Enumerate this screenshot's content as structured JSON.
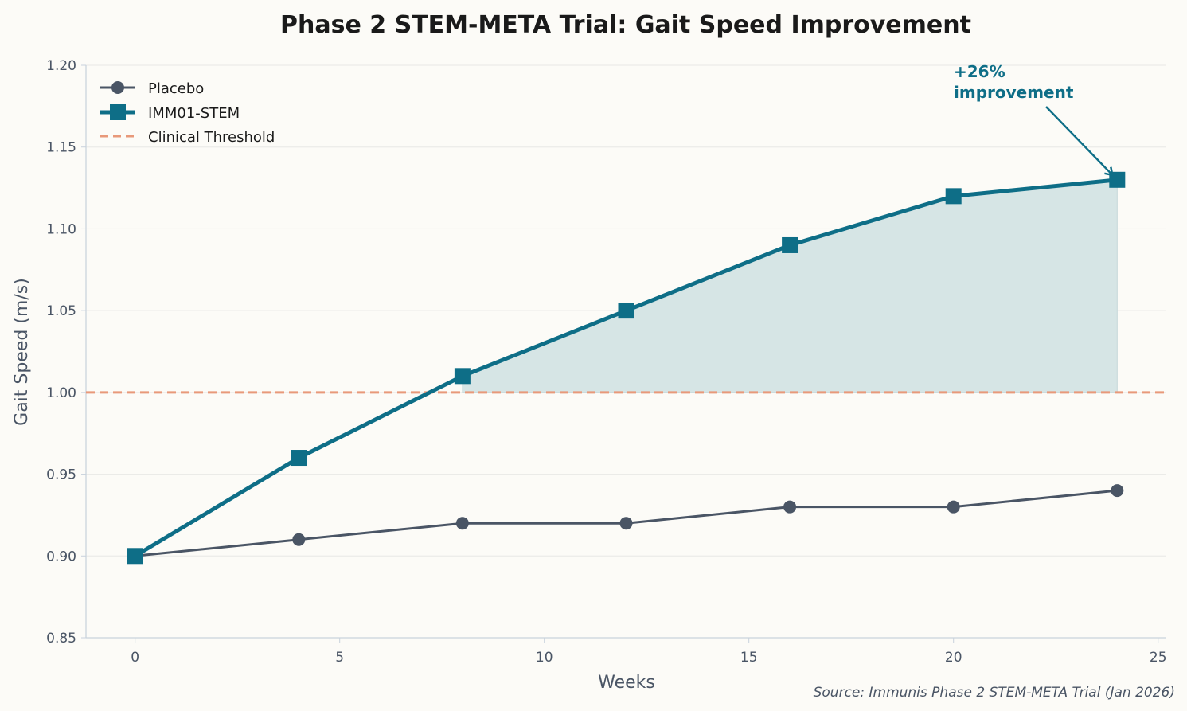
{
  "chart_data": {
    "type": "line",
    "title": "Phase 2 STEM-META Trial: Gait Speed Improvement",
    "xlabel": "Weeks",
    "ylabel": "Gait Speed (m/s)",
    "x": [
      0,
      4,
      8,
      12,
      16,
      20,
      24
    ],
    "xlim": [
      -1.2,
      25.2
    ],
    "ylim": [
      0.85,
      1.2
    ],
    "xticks": [
      "0",
      "5",
      "10",
      "15",
      "20",
      "25"
    ],
    "yticks": [
      "0.85",
      "0.90",
      "0.95",
      "1.00",
      "1.05",
      "1.10",
      "1.15",
      "1.20"
    ],
    "grid": "horizontal",
    "legend_position": "top-left",
    "series": [
      {
        "name": "Placebo",
        "values": [
          0.9,
          0.91,
          0.92,
          0.92,
          0.93,
          0.93,
          0.94
        ],
        "color": "#4a5565",
        "marker": "circle"
      },
      {
        "name": "IMM01-STEM",
        "values": [
          0.9,
          0.96,
          1.01,
          1.05,
          1.09,
          1.12,
          1.13
        ],
        "color": "#0e6e87",
        "marker": "square"
      }
    ],
    "threshold": {
      "name": "Clinical Threshold",
      "value": 1.0,
      "color": "#e8997a",
      "style": "dashed"
    },
    "fill_between": {
      "from_x": 8,
      "to_x": 24,
      "color": "#d6e5e5"
    },
    "annotation": {
      "line1": "+26%",
      "line2": "improvement",
      "x": 24,
      "y": 1.13
    },
    "source": "Source: Immunis Phase 2 STEM-META Trial (Jan 2026)"
  }
}
